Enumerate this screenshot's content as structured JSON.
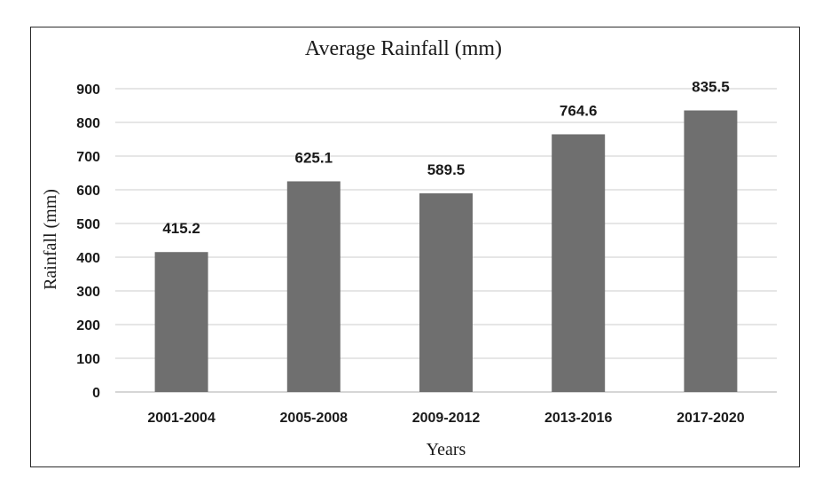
{
  "chart_data": {
    "type": "bar",
    "title": "Average Rainfall (mm)",
    "xlabel": "Years",
    "ylabel": "Rainfall (mm)",
    "categories": [
      "2001-2004",
      "2005-2008",
      "2009-2012",
      "2013-2016",
      "2017-2020"
    ],
    "values": [
      415.2,
      625.1,
      589.5,
      764.6,
      835.5
    ],
    "data_labels": [
      "415.2",
      "625.1",
      "589.5",
      "764.6",
      "835.5"
    ],
    "ylim": [
      0,
      900
    ],
    "yticks": [
      0,
      100,
      200,
      300,
      400,
      500,
      600,
      700,
      800,
      900
    ],
    "grid": true,
    "legend": "none",
    "bar_color": "#6f6f6f"
  }
}
